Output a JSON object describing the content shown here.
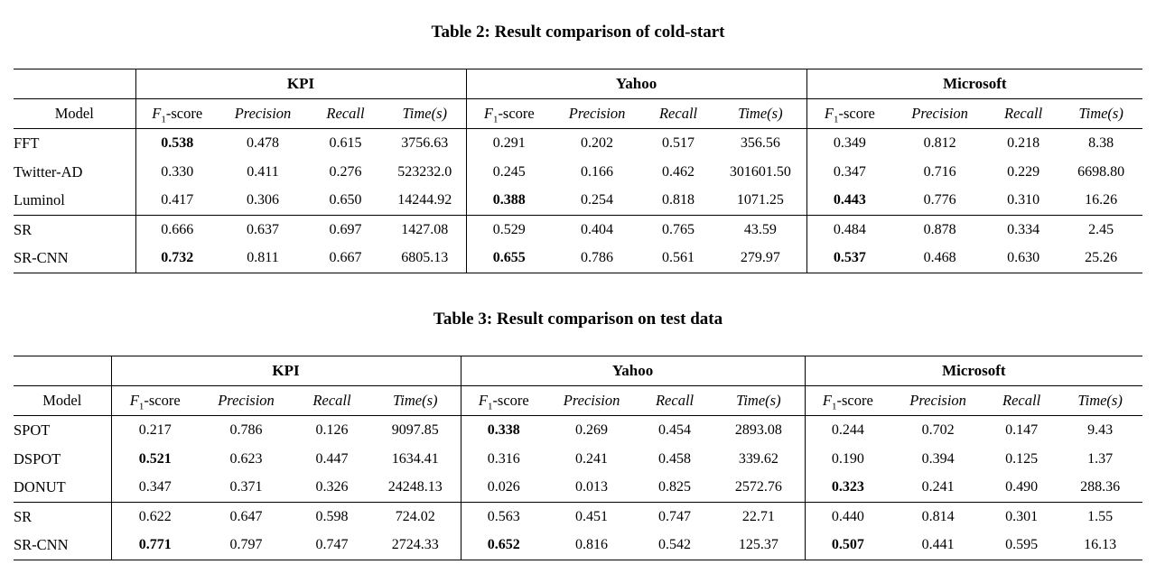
{
  "tables": [
    {
      "caption": "Table 2: Result comparison of cold-start",
      "model_header": "Model",
      "groups": [
        "KPI",
        "Yahoo",
        "Microsoft"
      ],
      "metrics": [
        "F1-score",
        "Precision",
        "Recall",
        "Time(s)"
      ],
      "rows": [
        {
          "model": "FFT",
          "values": [
            "0.538",
            "0.478",
            "0.615",
            "3756.63",
            "0.291",
            "0.202",
            "0.517",
            "356.56",
            "0.349",
            "0.812",
            "0.218",
            "8.38"
          ],
          "bold": [
            0
          ],
          "section_start": false
        },
        {
          "model": "Twitter-AD",
          "values": [
            "0.330",
            "0.411",
            "0.276",
            "523232.0",
            "0.245",
            "0.166",
            "0.462",
            "301601.50",
            "0.347",
            "0.716",
            "0.229",
            "6698.80"
          ],
          "bold": [],
          "section_start": false
        },
        {
          "model": "Luminol",
          "values": [
            "0.417",
            "0.306",
            "0.650",
            "14244.92",
            "0.388",
            "0.254",
            "0.818",
            "1071.25",
            "0.443",
            "0.776",
            "0.310",
            "16.26"
          ],
          "bold": [
            4,
            8
          ],
          "section_start": false
        },
        {
          "model": "SR",
          "values": [
            "0.666",
            "0.637",
            "0.697",
            "1427.08",
            "0.529",
            "0.404",
            "0.765",
            "43.59",
            "0.484",
            "0.878",
            "0.334",
            "2.45"
          ],
          "bold": [],
          "section_start": true
        },
        {
          "model": "SR-CNN",
          "values": [
            "0.732",
            "0.811",
            "0.667",
            "6805.13",
            "0.655",
            "0.786",
            "0.561",
            "279.97",
            "0.537",
            "0.468",
            "0.630",
            "25.26"
          ],
          "bold": [
            0,
            4,
            8
          ],
          "section_start": false
        }
      ]
    },
    {
      "caption": "Table 3: Result comparison on test data",
      "model_header": "Model",
      "groups": [
        "KPI",
        "Yahoo",
        "Microsoft"
      ],
      "metrics": [
        "F1-score",
        "Precision",
        "Recall",
        "Time(s)"
      ],
      "rows": [
        {
          "model": "SPOT",
          "values": [
            "0.217",
            "0.786",
            "0.126",
            "9097.85",
            "0.338",
            "0.269",
            "0.454",
            "2893.08",
            "0.244",
            "0.702",
            "0.147",
            "9.43"
          ],
          "bold": [
            4
          ],
          "section_start": false
        },
        {
          "model": "DSPOT",
          "values": [
            "0.521",
            "0.623",
            "0.447",
            "1634.41",
            "0.316",
            "0.241",
            "0.458",
            "339.62",
            "0.190",
            "0.394",
            "0.125",
            "1.37"
          ],
          "bold": [
            0
          ],
          "section_start": false
        },
        {
          "model": "DONUT",
          "values": [
            "0.347",
            "0.371",
            "0.326",
            "24248.13",
            "0.026",
            "0.013",
            "0.825",
            "2572.76",
            "0.323",
            "0.241",
            "0.490",
            "288.36"
          ],
          "bold": [
            8
          ],
          "section_start": false
        },
        {
          "model": "SR",
          "values": [
            "0.622",
            "0.647",
            "0.598",
            "724.02",
            "0.563",
            "0.451",
            "0.747",
            "22.71",
            "0.440",
            "0.814",
            "0.301",
            "1.55"
          ],
          "bold": [],
          "section_start": true
        },
        {
          "model": "SR-CNN",
          "values": [
            "0.771",
            "0.797",
            "0.747",
            "2724.33",
            "0.652",
            "0.816",
            "0.542",
            "125.37",
            "0.507",
            "0.441",
            "0.595",
            "16.13"
          ],
          "bold": [
            0,
            4,
            8
          ],
          "section_start": false
        }
      ]
    }
  ]
}
